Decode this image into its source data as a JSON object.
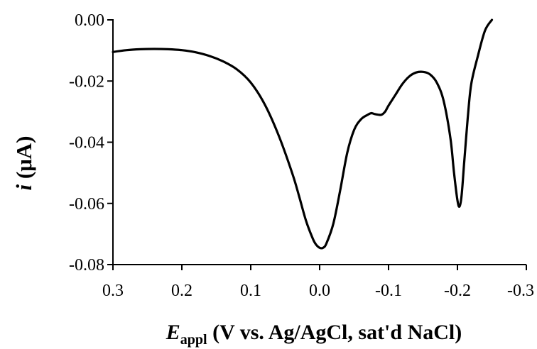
{
  "chart_data": {
    "type": "line",
    "title": "",
    "xlabel": {
      "symbol": "E",
      "subscript": "appl",
      "rest": " (V vs. Ag/AgCl, sat'd NaCl)"
    },
    "ylabel": {
      "symbol": "i",
      "rest": " (μA)"
    },
    "xlim": [
      0.3,
      -0.3
    ],
    "ylim": [
      -0.08,
      0.0
    ],
    "x_reversed": true,
    "x_ticks": [
      0.3,
      0.2,
      0.1,
      0.0,
      -0.1,
      -0.2,
      -0.3
    ],
    "x_tick_labels": [
      "0.3",
      "0.2",
      "0.1",
      "0.0",
      "-0.1",
      "-0.2",
      "-0.3"
    ],
    "y_ticks": [
      0.0,
      -0.02,
      -0.04,
      -0.06,
      -0.08
    ],
    "y_tick_labels": [
      "0.00",
      "-0.02",
      "-0.04",
      "-0.06",
      "-0.08"
    ],
    "grid": false,
    "legend": "none",
    "line_color": "#000000",
    "series": [
      {
        "x": [
          0.3,
          0.28,
          0.26,
          0.24,
          0.22,
          0.2,
          0.18,
          0.16,
          0.14,
          0.12,
          0.1,
          0.08,
          0.06,
          0.04,
          0.03,
          0.02,
          0.01,
          0.005,
          0.0,
          -0.005,
          -0.01,
          -0.02,
          -0.03,
          -0.04,
          -0.05,
          -0.06,
          -0.07,
          -0.075,
          -0.08,
          -0.085,
          -0.09,
          -0.095,
          -0.1,
          -0.11,
          -0.12,
          -0.13,
          -0.14,
          -0.15,
          -0.16,
          -0.17,
          -0.18,
          -0.19,
          -0.195,
          -0.2,
          -0.203,
          -0.206,
          -0.21,
          -0.215,
          -0.22,
          -0.23,
          -0.24,
          -0.25
        ],
        "y": [
          -0.0105,
          -0.0099,
          -0.0096,
          -0.0095,
          -0.0096,
          -0.0099,
          -0.0106,
          -0.0118,
          -0.0136,
          -0.0162,
          -0.0205,
          -0.0275,
          -0.0375,
          -0.05,
          -0.0575,
          -0.0655,
          -0.0715,
          -0.0735,
          -0.0745,
          -0.0745,
          -0.073,
          -0.0665,
          -0.0555,
          -0.0435,
          -0.036,
          -0.0325,
          -0.031,
          -0.0305,
          -0.0308,
          -0.031,
          -0.031,
          -0.03,
          -0.028,
          -0.0245,
          -0.021,
          -0.0185,
          -0.0172,
          -0.017,
          -0.0178,
          -0.0205,
          -0.0265,
          -0.039,
          -0.05,
          -0.059,
          -0.061,
          -0.0575,
          -0.046,
          -0.032,
          -0.021,
          -0.0115,
          -0.0035,
          0.0
        ]
      }
    ]
  }
}
